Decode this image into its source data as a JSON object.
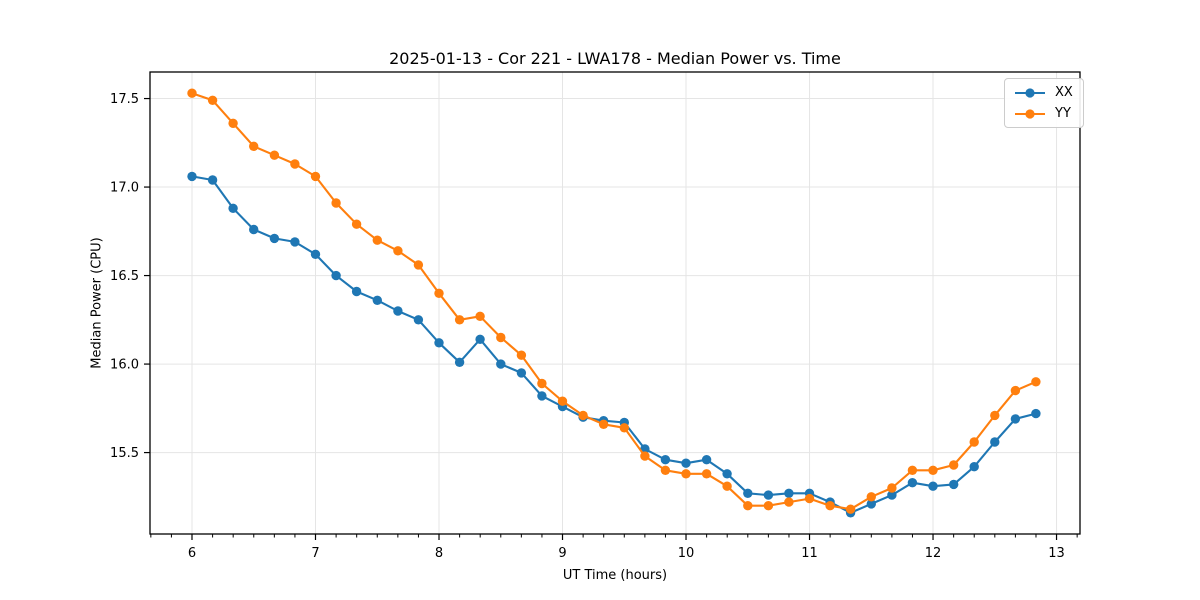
{
  "figure": {
    "background": "#ffffff"
  },
  "chart_data": {
    "type": "line",
    "title": "2025-01-13 - Cor 221 - LWA178 - Median Power vs. Time",
    "xlabel": "UT Time (hours)",
    "ylabel": "Median Power (CPU)",
    "xlim": [
      5.66,
      13.19
    ],
    "ylim": [
      15.04,
      17.65
    ],
    "xticks": [
      6,
      7,
      8,
      9,
      10,
      11,
      12,
      13
    ],
    "yticks": [
      15.5,
      16.0,
      16.5,
      17.0,
      17.5
    ],
    "x_minor_step": 0.16667,
    "grid": true,
    "grid_color": "#e5e5e5",
    "legend_position": "upper right",
    "x": [
      6.0,
      6.167,
      6.333,
      6.5,
      6.667,
      6.833,
      7.0,
      7.167,
      7.333,
      7.5,
      7.667,
      7.833,
      8.0,
      8.167,
      8.333,
      8.5,
      8.667,
      8.833,
      9.0,
      9.167,
      9.333,
      9.5,
      9.667,
      9.833,
      10.0,
      10.167,
      10.333,
      10.5,
      10.667,
      10.833,
      11.0,
      11.167,
      11.333,
      11.5,
      11.667,
      11.833,
      12.0,
      12.167,
      12.333,
      12.5,
      12.667,
      12.833
    ],
    "series": [
      {
        "name": "XX",
        "color": "#1f77b4",
        "values": [
          17.06,
          17.04,
          16.88,
          16.76,
          16.71,
          16.69,
          16.62,
          16.5,
          16.41,
          16.36,
          16.3,
          16.25,
          16.12,
          16.01,
          16.14,
          16.0,
          15.95,
          15.82,
          15.76,
          15.7,
          15.68,
          15.67,
          15.52,
          15.46,
          15.44,
          15.46,
          15.38,
          15.27,
          15.26,
          15.27,
          15.27,
          15.22,
          15.16,
          15.21,
          15.26,
          15.33,
          15.31,
          15.32,
          15.42,
          15.56,
          15.69,
          15.72
        ]
      },
      {
        "name": "YY",
        "color": "#ff7f0e",
        "values": [
          17.53,
          17.49,
          17.36,
          17.23,
          17.18,
          17.13,
          17.06,
          16.91,
          16.79,
          16.7,
          16.64,
          16.56,
          16.4,
          16.25,
          16.27,
          16.15,
          16.05,
          15.89,
          15.79,
          15.71,
          15.66,
          15.64,
          15.48,
          15.4,
          15.38,
          15.38,
          15.31,
          15.2,
          15.2,
          15.22,
          15.24,
          15.2,
          15.18,
          15.25,
          15.3,
          15.4,
          15.4,
          15.43,
          15.56,
          15.71,
          15.85,
          15.9
        ]
      }
    ]
  }
}
